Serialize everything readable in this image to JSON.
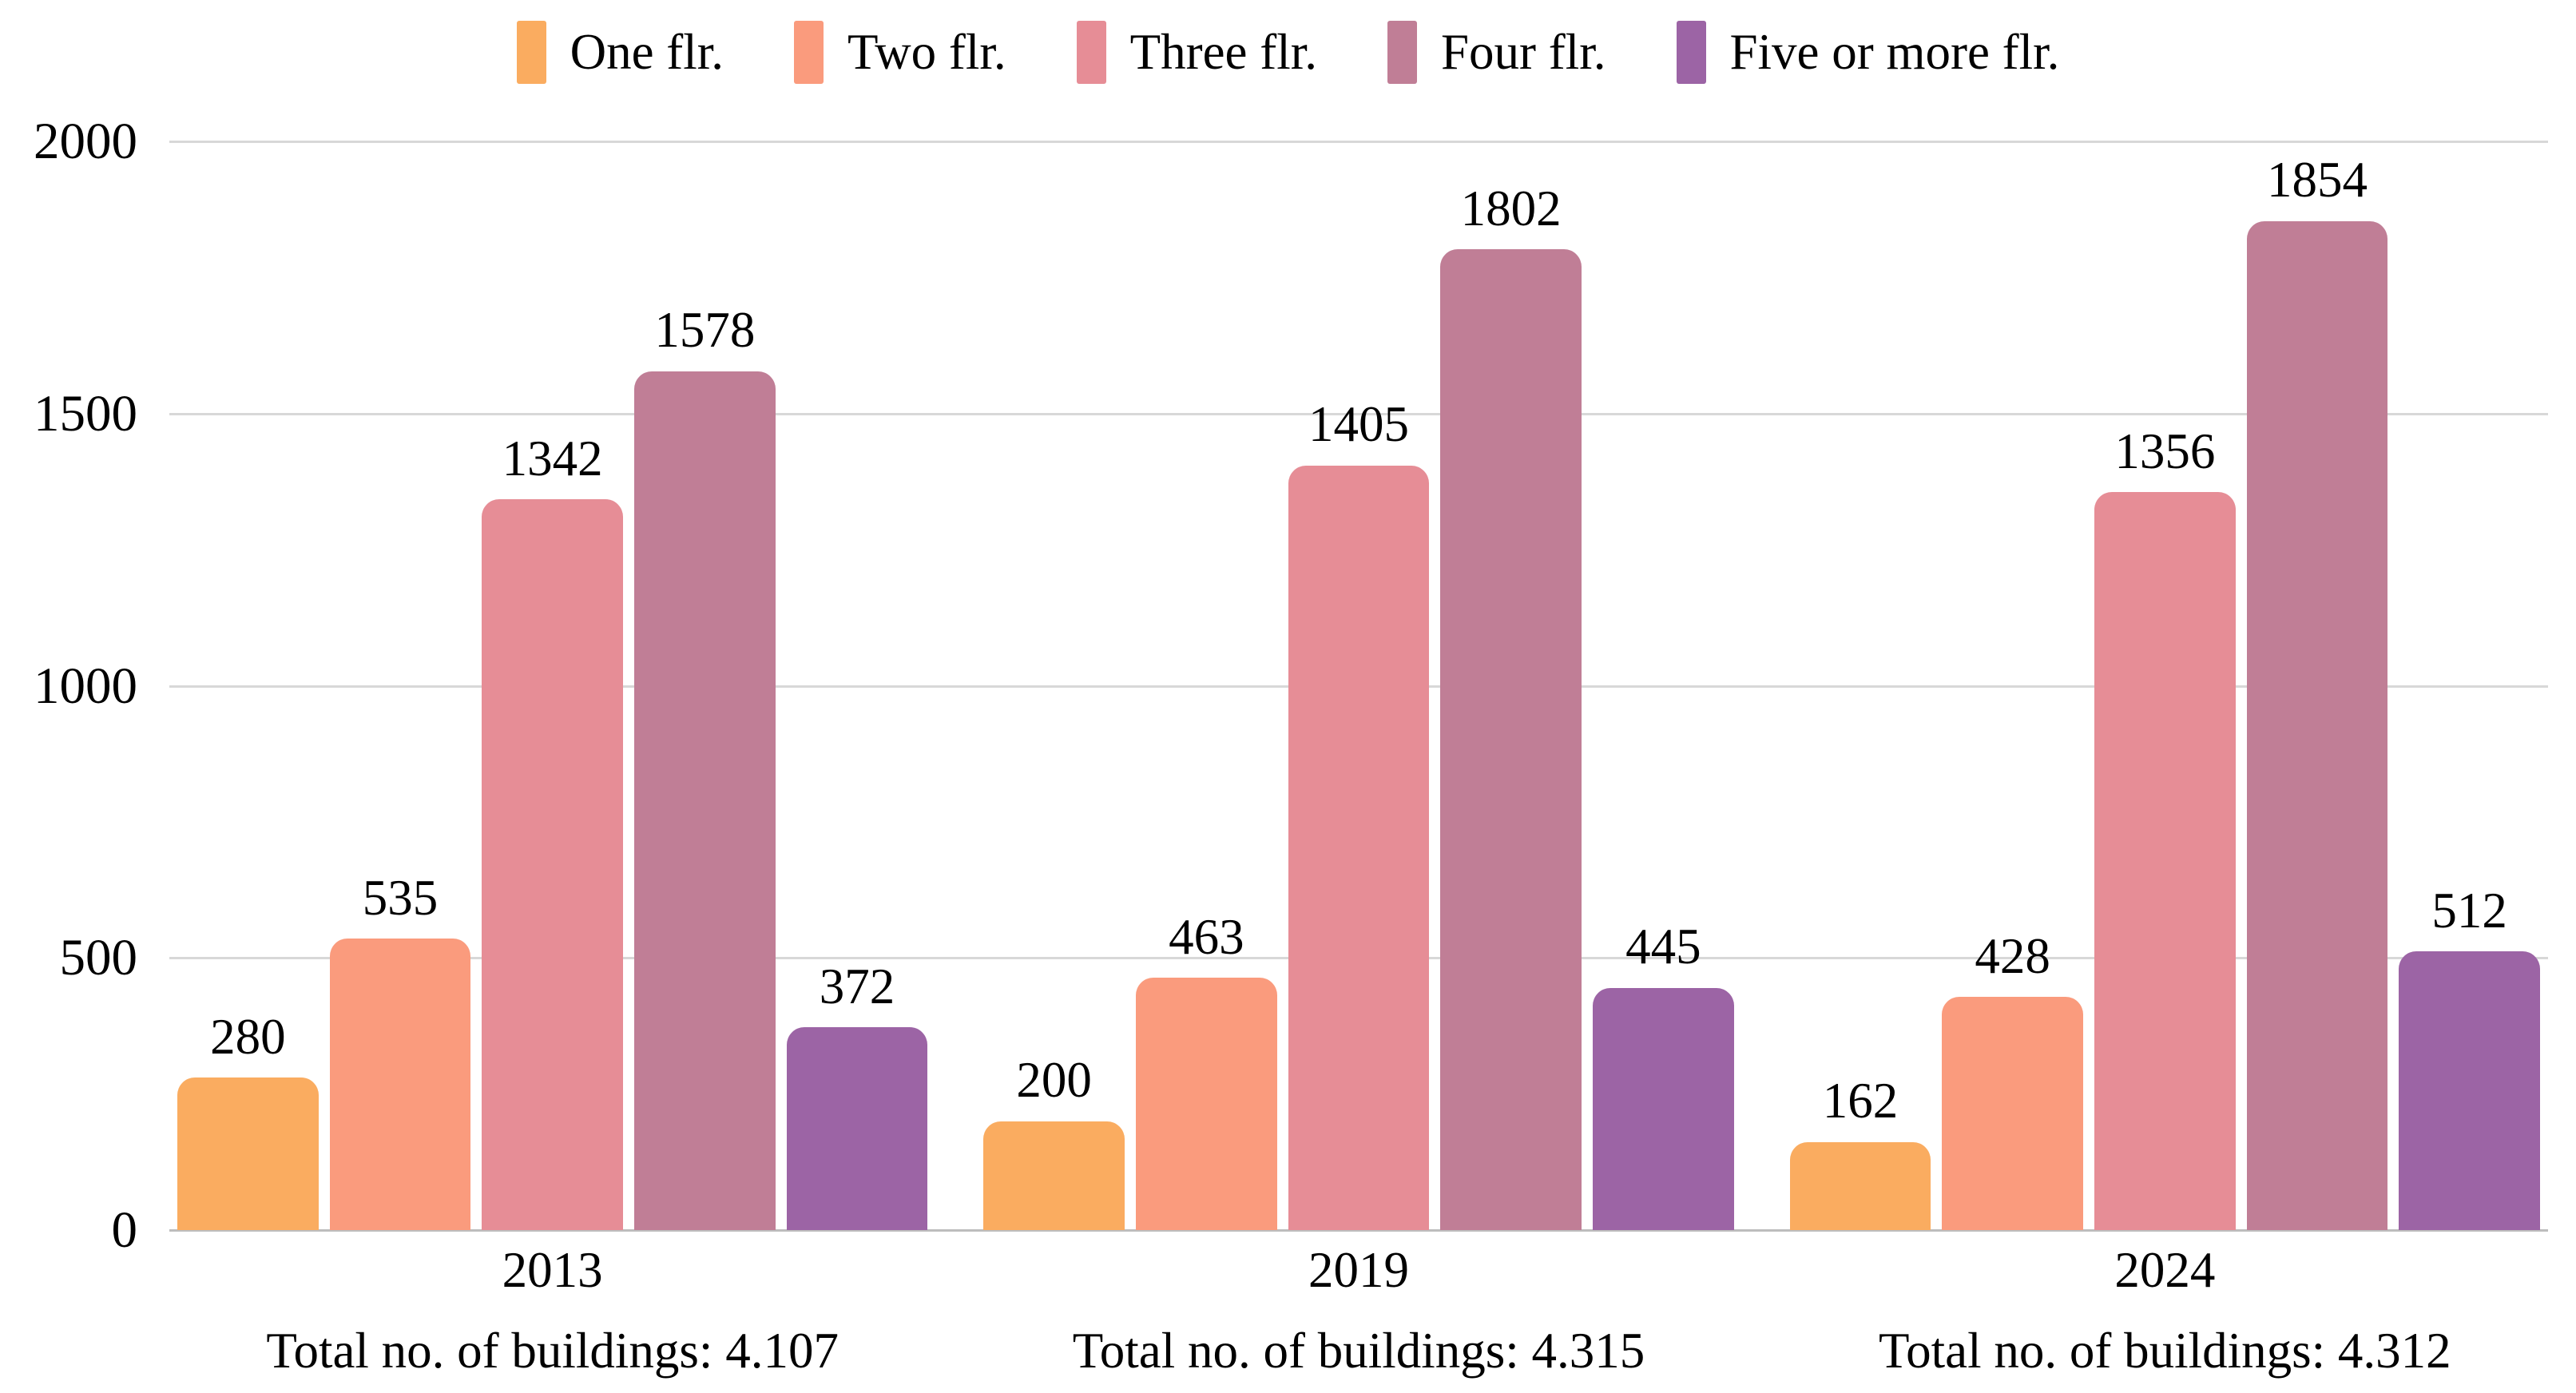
{
  "chart": {
    "background_color": "#FFFFFF",
    "grid_color": "#D8D8D8",
    "baseline_color": "#BDBDBD",
    "text_color": "#000000"
  },
  "chart_data": {
    "type": "bar",
    "title": "",
    "categories": [
      "2013",
      "2019",
      "2024"
    ],
    "series": [
      {
        "name": "One flr.",
        "color": "#FAAC60",
        "values": [
          280,
          200,
          162
        ]
      },
      {
        "name": "Two flr.",
        "color": "#FA9B7D",
        "values": [
          535,
          463,
          428
        ]
      },
      {
        "name": "Three flr.",
        "color": "#E68D96",
        "values": [
          1342,
          1405,
          1356
        ]
      },
      {
        "name": "Four flr.",
        "color": "#C07E96",
        "values": [
          1578,
          1802,
          1854
        ]
      },
      {
        "name": "Five or more flr.",
        "color": "#9C64A5",
        "values": [
          372,
          445,
          512
        ]
      }
    ],
    "category_footnotes": [
      "Total no. of buildings: 4.107",
      "Total no. of buildings: 4.315",
      "Total no. of buildings: 4.312"
    ],
    "value_labels_shown": true,
    "xlabel": "",
    "ylabel": "",
    "ylim": [
      0,
      2000
    ],
    "y_ticks": [
      2000,
      1500,
      1000,
      500,
      0
    ],
    "grid": true,
    "legend_position": "top"
  }
}
